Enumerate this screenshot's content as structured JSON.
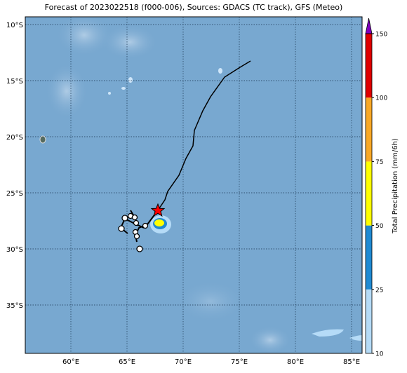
{
  "map": {
    "title": "Forecast of 2023022518 (f000-006), Sources: GDACS (TC track), GFS (Meteo)",
    "lat_labels": [
      "10°S",
      "15°S",
      "20°S",
      "25°S",
      "30°S",
      "35°S"
    ],
    "lon_labels": [
      "60°E",
      "65°E",
      "70°E",
      "75°E",
      "80°E",
      "85°E"
    ],
    "colorbar": {
      "label": "Total Precipitation (mm/6h)",
      "ticks": [
        10,
        25,
        50,
        75,
        100,
        150
      ],
      "colors": [
        "#b5dbf7",
        "#1f8ad2",
        "#ffff00",
        "#f9a825",
        "#e00000"
      ],
      "extend_color": "#8000c0"
    }
  }
}
